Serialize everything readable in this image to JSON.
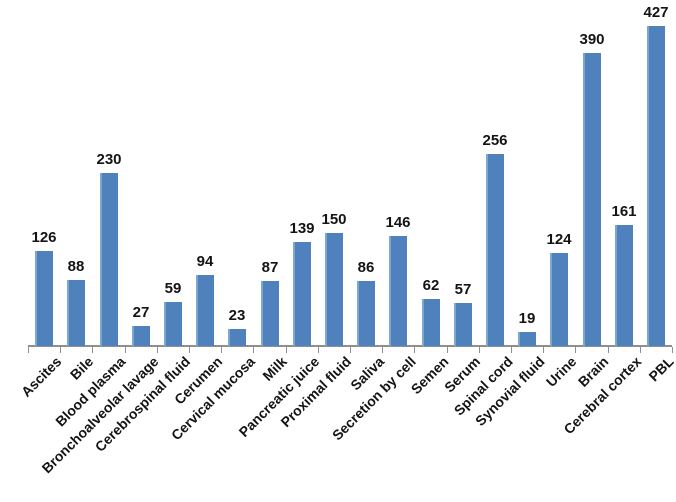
{
  "chart_data": {
    "type": "bar",
    "title": "",
    "xlabel": "",
    "ylabel": "",
    "categories": [
      "Ascites",
      "Bile",
      "Blood plasma",
      "Bronchoalveolar lavage",
      "Cerebrospinal fluid",
      "Cerumen",
      "Cervical mucosa",
      "Milk",
      "Pancreatic juice",
      "Proximal fluid",
      "Saliva",
      "Secretion by cell",
      "Semen",
      "Serum",
      "Spinal cord",
      "Synovial fluid",
      "Urine",
      "Brain",
      "Cerebral cortex",
      "PBL"
    ],
    "values": [
      126,
      88,
      230,
      27,
      59,
      94,
      23,
      87,
      139,
      150,
      86,
      146,
      62,
      57,
      256,
      19,
      124,
      390,
      161,
      427
    ],
    "ylim": [
      0,
      460
    ],
    "grid": false,
    "legend": false,
    "value_labels_shown": true,
    "category_label_rotation_deg": 45,
    "colors": {
      "bar_fill": "#4f81bd",
      "bar_highlight": "#7ea6d3",
      "axis": "#8f8f8f",
      "text": "#141414",
      "background": "#ffffff"
    }
  }
}
